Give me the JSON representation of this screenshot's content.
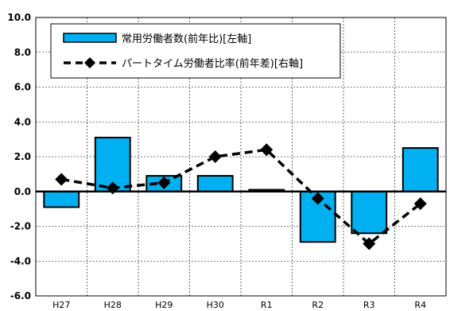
{
  "chart_data": {
    "type": "bar+line",
    "categories": [
      "H27",
      "H28",
      "H29",
      "H30",
      "R1",
      "R2",
      "R3",
      "R4"
    ],
    "series": [
      {
        "name": "常用労働者数(前年比)[左軸]",
        "type": "bar",
        "values": [
          -0.9,
          3.1,
          0.9,
          0.9,
          0.1,
          -2.9,
          -2.4,
          2.5
        ],
        "color": "#00b0f0"
      },
      {
        "name": "パートタイム労働者比率(前年差)[右軸]",
        "type": "line",
        "values": [
          0.7,
          0.2,
          0.5,
          2.0,
          2.4,
          -0.4,
          -3.0,
          -0.7
        ],
        "color": "#000000"
      }
    ],
    "yticks": [
      "10.0",
      "8.0",
      "6.0",
      "4.0",
      "2.0",
      "0.0",
      "-2.0",
      "-4.0",
      "-6.0"
    ],
    "ylim": [
      -6,
      10
    ],
    "grid": true,
    "legend_position": "top-left"
  }
}
